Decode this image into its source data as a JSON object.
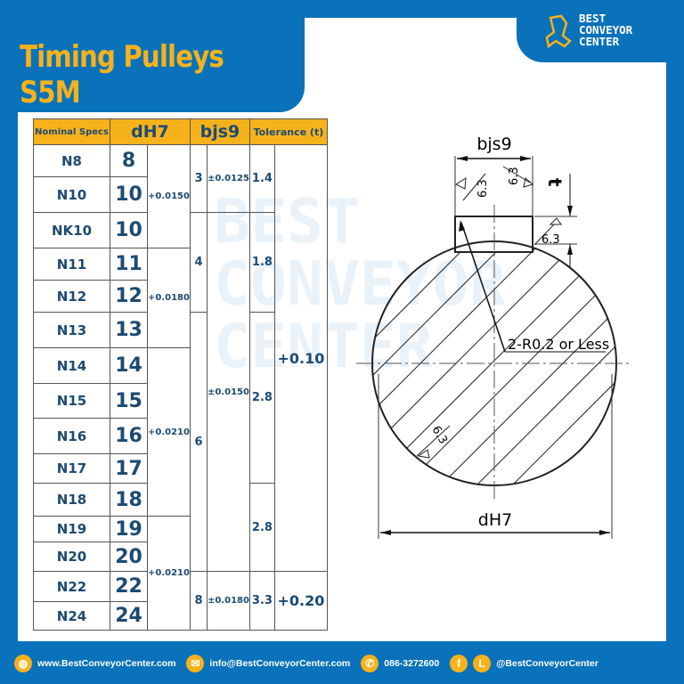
{
  "title": "Timing Pulleys S5M",
  "logo": {
    "text": "BEST CONVEYOR CENTER"
  },
  "table": {
    "headers": {
      "nominal": "Nominal Specs",
      "dh7": "dH7",
      "bjs9": "bjs9",
      "t": "Tolerance (t)"
    },
    "rows": [
      {
        "spec": "N8",
        "d": "8"
      },
      {
        "spec": "N10",
        "d": "10"
      },
      {
        "spec": "NK10",
        "d": "10"
      },
      {
        "spec": "N11",
        "d": "11"
      },
      {
        "spec": "N12",
        "d": "12"
      },
      {
        "spec": "N13",
        "d": "13"
      },
      {
        "spec": "N14",
        "d": "14"
      },
      {
        "spec": "N15",
        "d": "15"
      },
      {
        "spec": "N16",
        "d": "16"
      },
      {
        "spec": "N17",
        "d": "17"
      },
      {
        "spec": "N18",
        "d": "18"
      },
      {
        "spec": "N19",
        "d": "19"
      },
      {
        "spec": "N20",
        "d": "20"
      },
      {
        "spec": "N22",
        "d": "22"
      },
      {
        "spec": "N24",
        "d": "24"
      }
    ],
    "dh7_tol": [
      {
        "text": "+0.0150",
        "rows": 3
      },
      {
        "text": "+0.0180",
        "rows": 3
      },
      {
        "text": "+0.0210",
        "rows": 5
      },
      {
        "text": "+0.0210",
        "rows": 4
      }
    ],
    "bjs9_val": [
      {
        "text": "3",
        "rows": 2
      },
      {
        "text": "4",
        "rows": 3
      },
      {
        "text": "6",
        "rows": 8
      },
      {
        "text": "8",
        "rows": 2
      }
    ],
    "bjs9_tol": [
      {
        "text": "±0.0125",
        "rows": 2
      },
      {
        "text": "±0.0150",
        "rows": 11
      },
      {
        "text": "±0.0180",
        "rows": 2
      }
    ],
    "t_val": [
      {
        "text": "1.4",
        "rows": 2
      },
      {
        "text": "1.8",
        "rows": 3
      },
      {
        "text": "2.8",
        "rows": 5
      },
      {
        "text": "2.8",
        "rows": 3
      },
      {
        "text": "3.3",
        "rows": 2
      }
    ],
    "t_tol": [
      {
        "text": "+0.10",
        "rows": 13
      },
      {
        "text": "+0.20",
        "rows": 2
      }
    ]
  },
  "diagram": {
    "bjs9": "bjs9",
    "t": "t",
    "roughness": "6.3",
    "radius_note": "2-R0.2 or Less",
    "dh7": "dH7"
  },
  "footer": {
    "website": "www.BestConveyorCenter.com",
    "email": "info@BestConveyorCenter.com",
    "phone": "086-3272600",
    "social": "@BestConveyorCenter"
  },
  "colors": {
    "brand_blue": "#0a72ba",
    "accent": "#f6b21b",
    "text": "#1d4a72"
  }
}
